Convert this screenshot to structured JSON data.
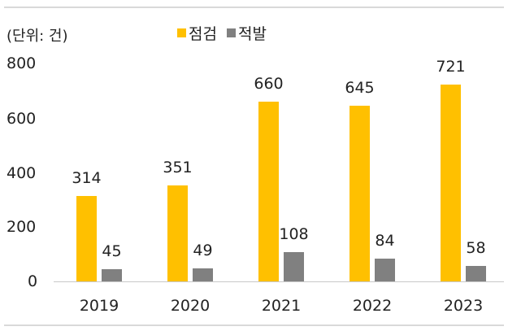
{
  "unit_label": "(단위: 건)",
  "legend": [
    {
      "label": "점검",
      "color": "#FFC000"
    },
    {
      "label": "적발",
      "color": "#808080"
    }
  ],
  "y_ticks": [
    "800",
    "600",
    "400",
    "200",
    "0"
  ],
  "chart_data": {
    "type": "bar",
    "title": "",
    "xlabel": "",
    "ylabel": "",
    "unit": "(단위: 건)",
    "categories": [
      "2019",
      "2020",
      "2021",
      "2022",
      "2023"
    ],
    "series": [
      {
        "name": "점검",
        "color": "#FFC000",
        "values": [
          314,
          351,
          660,
          645,
          721
        ]
      },
      {
        "name": "적발",
        "color": "#808080",
        "values": [
          45,
          49,
          108,
          84,
          58
        ]
      }
    ],
    "ylim": [
      0,
      800
    ],
    "yticks": [
      0,
      200,
      400,
      600,
      800
    ],
    "grid": false,
    "legend_position": "top",
    "data_labels": true
  }
}
